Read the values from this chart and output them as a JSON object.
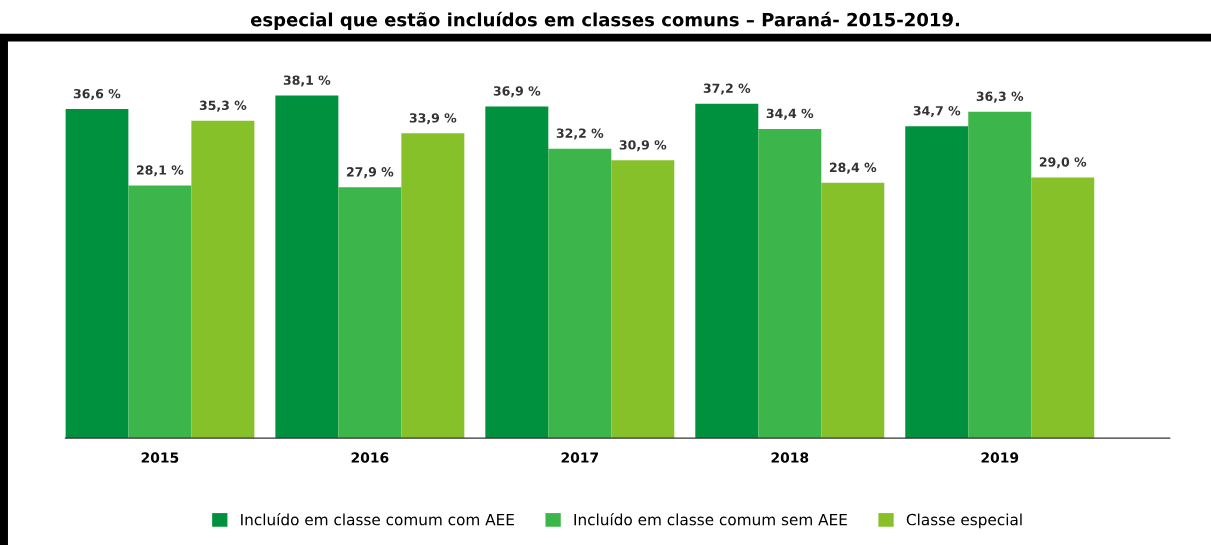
{
  "chart_data": {
    "type": "bar",
    "title": "especial que estão incluídos em classes comuns – Paraná- 2015-2019.",
    "categories": [
      "2015",
      "2016",
      "2017",
      "2018",
      "2019"
    ],
    "series": [
      {
        "name": "Incluído em classe comum com AEE",
        "color": "#00913f",
        "values": [
          36.6,
          38.1,
          36.9,
          37.2,
          34.7
        ],
        "value_labels": [
          "36,6 %",
          "38,1 %",
          "36,9 %",
          "37,2 %",
          "34,7 %"
        ]
      },
      {
        "name": "Incluído em classe comum sem AEE",
        "color": "#3cb54a",
        "values": [
          28.1,
          27.9,
          32.2,
          34.4,
          36.3
        ],
        "value_labels": [
          "28,1 %",
          "27,9 %",
          "32,2 %",
          "34,4 %",
          "36,3 %"
        ]
      },
      {
        "name": "Classe especial",
        "color": "#86c12a",
        "values": [
          35.3,
          33.9,
          30.9,
          28.4,
          29.0
        ],
        "value_labels": [
          "35,3 %",
          "33,9 %",
          "30,9 %",
          "28,4 %",
          "29,0 %"
        ]
      }
    ],
    "tick_labels": "x",
    "grid": false,
    "legend": "bottom"
  }
}
